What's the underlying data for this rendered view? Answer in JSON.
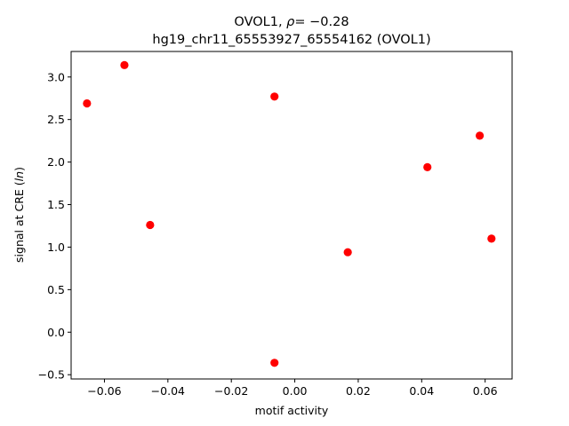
{
  "chart_data": {
    "type": "scatter",
    "title_line1": "OVOL1, ρ = −0.28",
    "title_line2": "hg19_chr11_65553927_65554162 (OVOL1)",
    "xlabel": "motif activity",
    "ylabel": "signal at CRE (ln)",
    "xlim": [
      -0.0705,
      0.0685
    ],
    "ylim": [
      -0.55,
      3.3
    ],
    "x_ticks": [
      -0.06,
      -0.04,
      -0.02,
      0.0,
      0.02,
      0.04,
      0.06
    ],
    "x_tick_labels": [
      "−0.06",
      "−0.04",
      "−0.02",
      "0.00",
      "0.02",
      "0.04",
      "0.06"
    ],
    "y_ticks": [
      -0.5,
      0.0,
      0.5,
      1.0,
      1.5,
      2.0,
      2.5,
      3.0
    ],
    "y_tick_labels": [
      "−0.5",
      "0.0",
      "0.5",
      "1.0",
      "1.5",
      "2.0",
      "2.5",
      "3.0"
    ],
    "grid": false,
    "marker_color": "#ff0000",
    "points": [
      {
        "x": -0.0655,
        "y": 2.69
      },
      {
        "x": -0.0537,
        "y": 3.14
      },
      {
        "x": -0.0456,
        "y": 1.26
      },
      {
        "x": -0.0064,
        "y": 2.77
      },
      {
        "x": -0.0064,
        "y": -0.36
      },
      {
        "x": 0.0167,
        "y": 0.94
      },
      {
        "x": 0.0418,
        "y": 1.94
      },
      {
        "x": 0.0583,
        "y": 2.31
      },
      {
        "x": 0.062,
        "y": 1.1
      }
    ]
  }
}
